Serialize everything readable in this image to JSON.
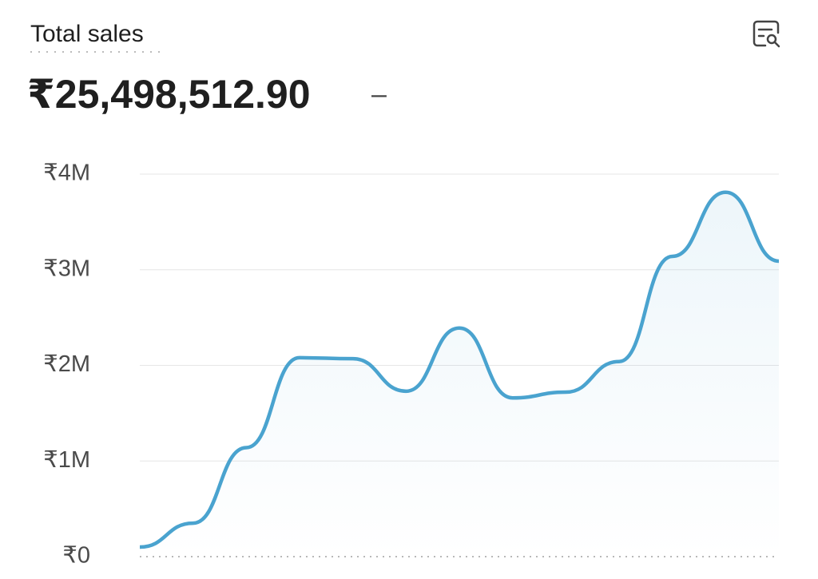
{
  "chart_data": {
    "type": "line",
    "title": "Total sales",
    "total": "₹25,498,512.90",
    "change": "–",
    "categories": [
      null,
      null,
      null,
      null,
      null,
      null,
      null,
      null,
      null,
      null,
      null,
      null,
      null
    ],
    "series": [
      {
        "color": "#4aa3cf",
        "values": [
          100000,
          350000,
          1140000,
          2080000,
          2070000,
          1730000,
          2390000,
          1660000,
          1720000,
          2040000,
          3140000,
          3810000,
          3090000
        ]
      }
    ],
    "ylim": [
      0,
      4000000
    ],
    "yticks": [
      {
        "value": 0,
        "label": "₹0"
      },
      {
        "value": 1000000,
        "label": "₹1M"
      },
      {
        "value": 2000000,
        "label": "₹2M"
      },
      {
        "value": 3000000,
        "label": "₹3M"
      },
      {
        "value": 4000000,
        "label": "₹4M"
      }
    ],
    "grid": true
  }
}
